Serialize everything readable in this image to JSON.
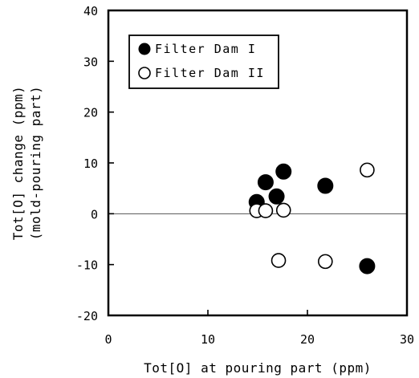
{
  "chart_data": {
    "type": "scatter",
    "xlabel": "Tot[O] at pouring part (ppm)",
    "ylabel_lines": [
      "Tot[O] change (ppm)",
      "(mold-pouring part)"
    ],
    "xlim": [
      0,
      30
    ],
    "ylim": [
      -20,
      40
    ],
    "x_ticks": [
      "0",
      "10",
      "20",
      "30"
    ],
    "y_ticks": [
      "40",
      "30",
      "20",
      "10",
      "0",
      "-10",
      "-20"
    ],
    "zero_line": true,
    "legend_position": "top-left",
    "series": [
      {
        "name": "Filter Dam I",
        "marker": "filled-circle",
        "points": [
          {
            "x": 14.9,
            "y": 2.3
          },
          {
            "x": 15.8,
            "y": 6.2
          },
          {
            "x": 16.9,
            "y": 3.4
          },
          {
            "x": 17.6,
            "y": 8.3
          },
          {
            "x": 21.8,
            "y": 5.5
          },
          {
            "x": 26.0,
            "y": -10.3
          }
        ]
      },
      {
        "name": "Filter Dam II",
        "marker": "open-circle",
        "points": [
          {
            "x": 14.9,
            "y": 0.6
          },
          {
            "x": 15.8,
            "y": 0.6
          },
          {
            "x": 17.1,
            "y": -9.2
          },
          {
            "x": 17.6,
            "y": 0.7
          },
          {
            "x": 21.8,
            "y": -9.4
          },
          {
            "x": 26.0,
            "y": 8.6
          }
        ]
      }
    ]
  },
  "colors": {
    "ink": "#000000",
    "zero_line": "#555555",
    "background": "#ffffff"
  }
}
